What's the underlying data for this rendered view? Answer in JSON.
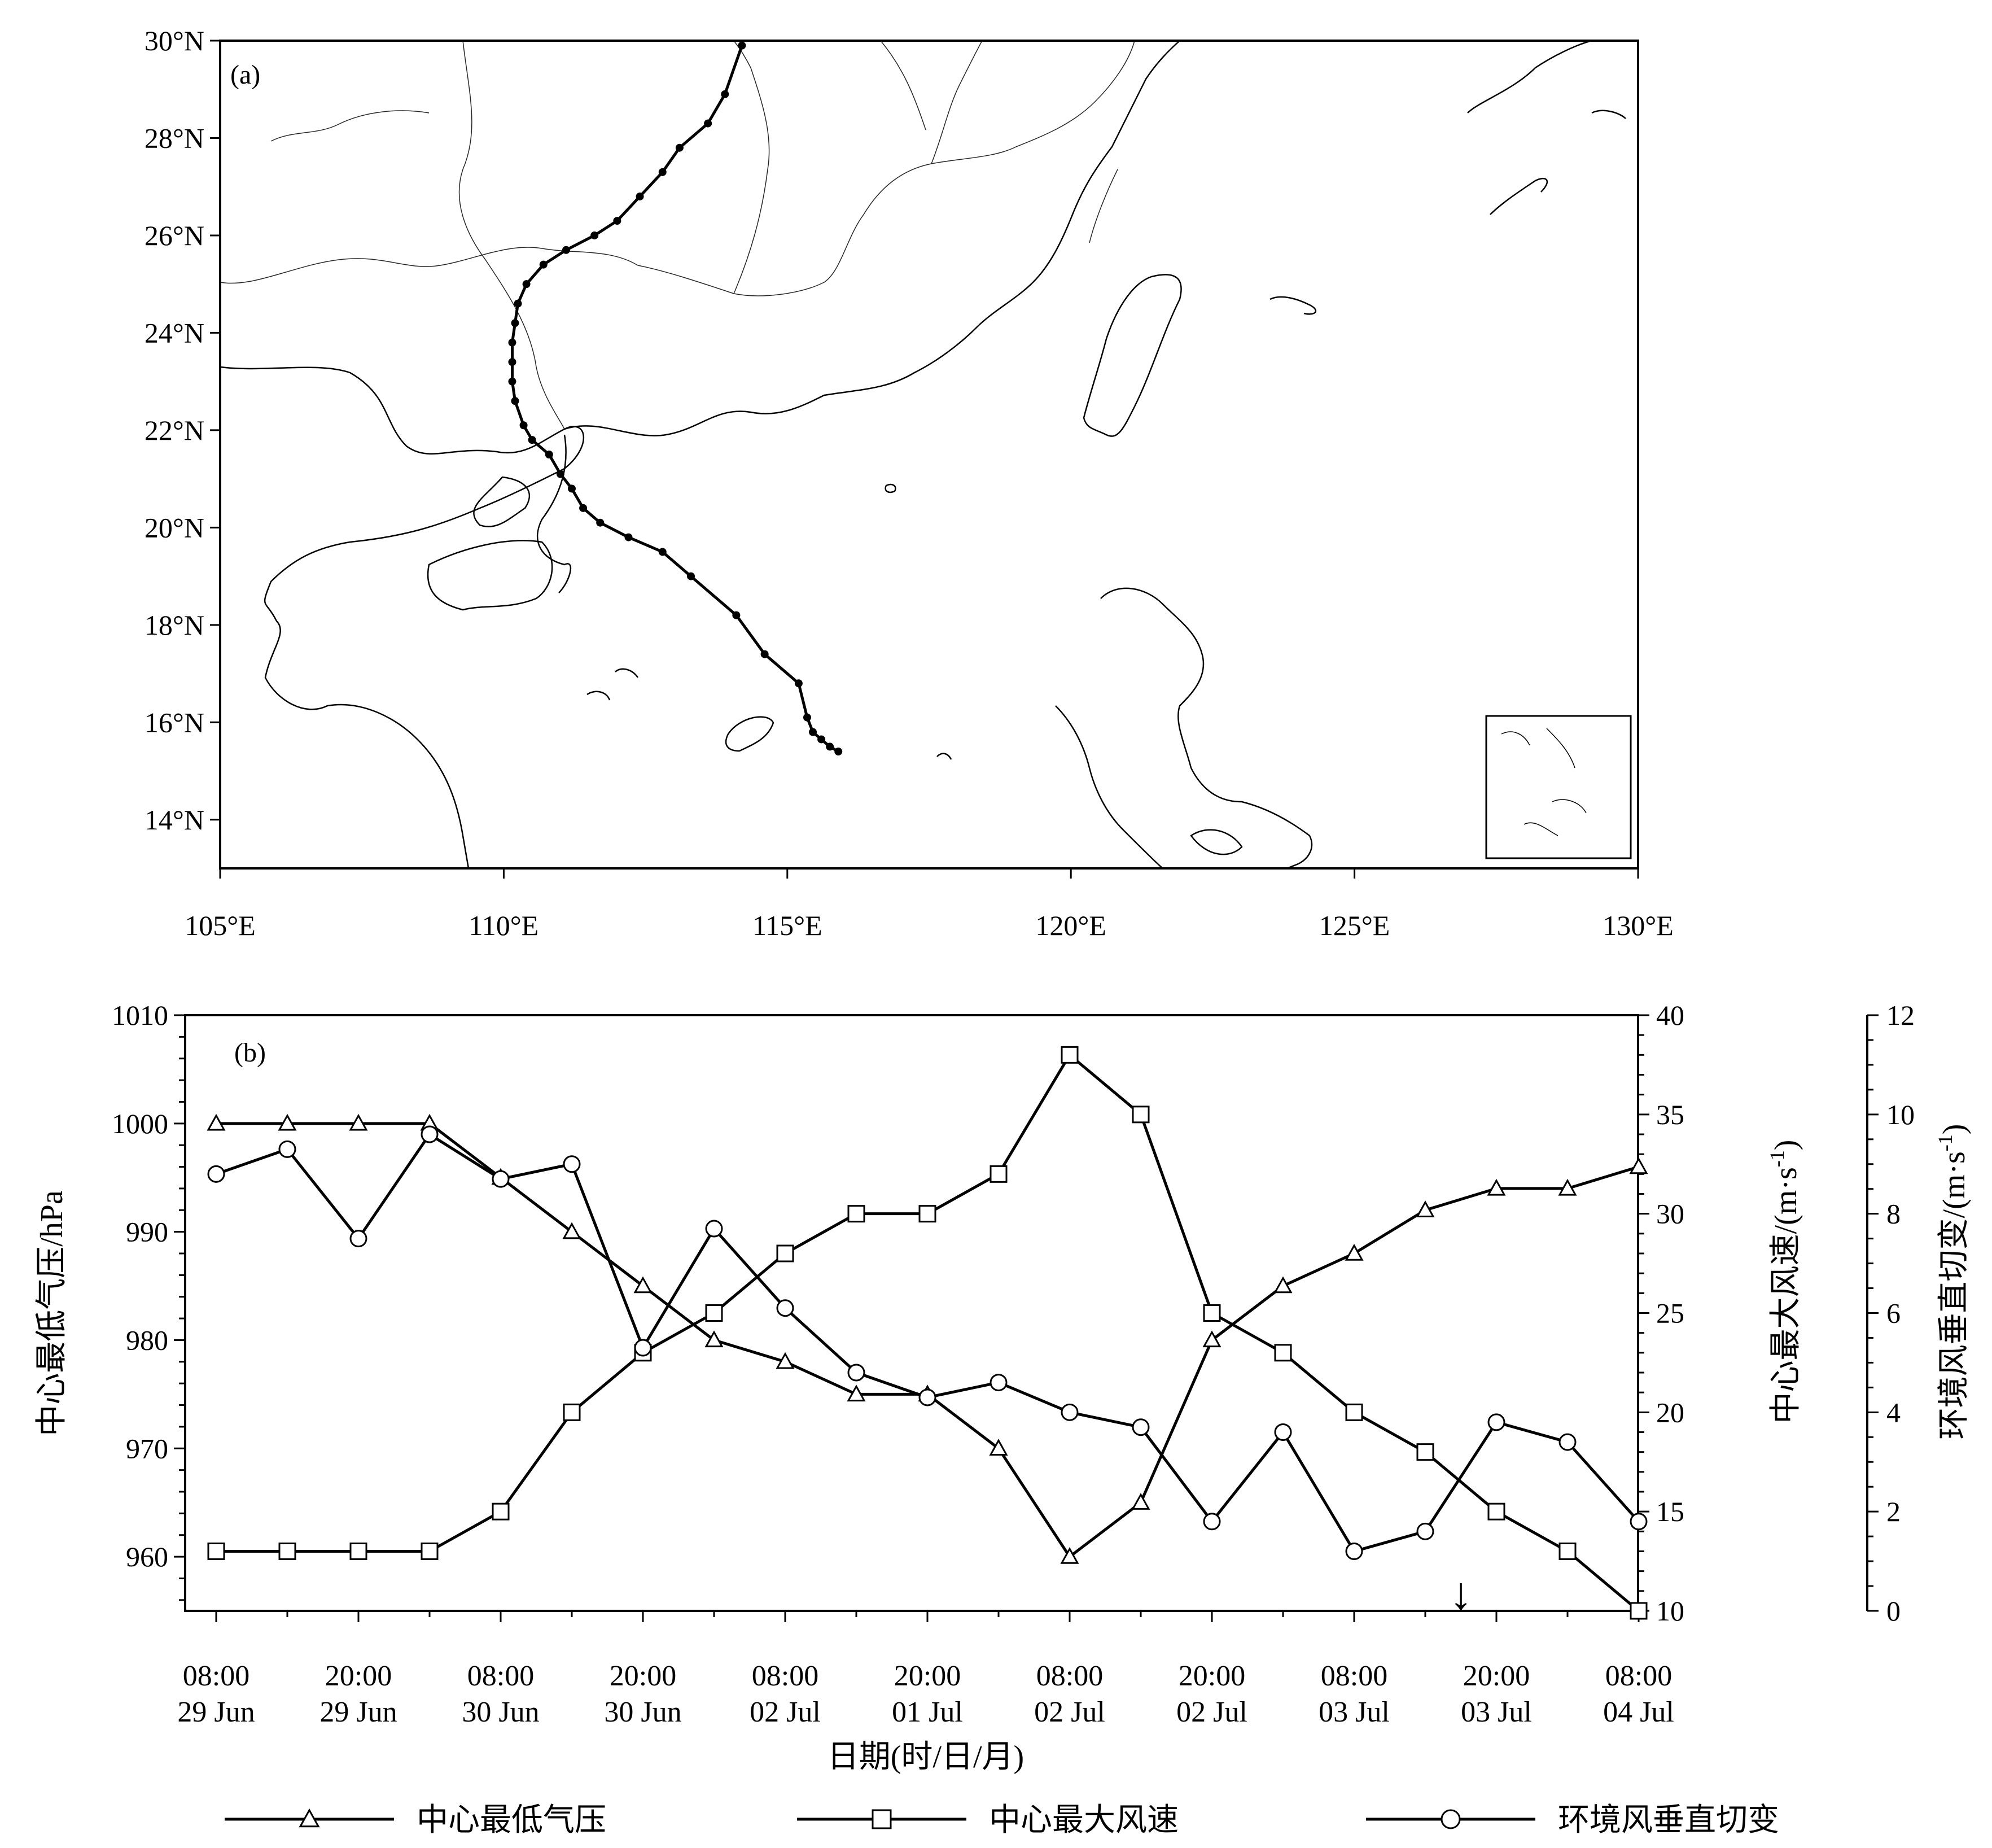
{
  "figure_a": {
    "panel_label": "(a)",
    "lat_ticks": [
      "14°N",
      "16°N",
      "18°N",
      "20°N",
      "22°N",
      "24°N",
      "26°N",
      "28°N",
      "30°N"
    ],
    "lon_ticks": [
      "105°E",
      "110°E",
      "115°E",
      "120°E",
      "125°E",
      "130°E"
    ]
  },
  "figure_b": {
    "panel_label": "(b)",
    "y_left_label": "中心最低气压/hPa",
    "y_right1_label": "中心最大风速/(m·s",
    "y_right2_label": "环境风垂直切变/(m·s",
    "unit_superscript": "-1",
    "unit_close": ")",
    "x_label": "日期(时/日/月)",
    "x_tick_times": [
      "08:00",
      "20:00",
      "08:00",
      "20:00",
      "08:00",
      "20:00",
      "08:00",
      "20:00",
      "08:00",
      "20:00",
      "08:00"
    ],
    "x_tick_dates": [
      "29 Jun",
      "29 Jun",
      "30 Jun",
      "30 Jun",
      "02 Jul",
      "01 Jul",
      "02 Jul",
      "02 Jul",
      "03 Jul",
      "03 Jul",
      "04 Jul"
    ],
    "y_left_ticks": [
      "960",
      "970",
      "980",
      "990",
      "1000",
      "1010"
    ],
    "y_right1_ticks": [
      "10",
      "15",
      "20",
      "25",
      "30",
      "35",
      "40"
    ],
    "y_right2_ticks": [
      "0",
      "2",
      "4",
      "6",
      "8",
      "10",
      "12"
    ],
    "arrow_symbol": "↓",
    "legend": [
      {
        "label": "中心最低气压",
        "marker": "triangle"
      },
      {
        "label": "中心最大风速",
        "marker": "square"
      },
      {
        "label": "环境风垂直切变",
        "marker": "circle"
      }
    ]
  },
  "chart_data": [
    {
      "type": "map",
      "title": "",
      "lon_range": [
        105,
        130
      ],
      "lat_range": [
        13,
        30
      ],
      "track": [
        [
          115.9,
          15.4
        ],
        [
          115.75,
          15.5
        ],
        [
          115.6,
          15.65
        ],
        [
          115.45,
          15.8
        ],
        [
          115.35,
          16.1
        ],
        [
          115.2,
          16.8
        ],
        [
          114.6,
          17.4
        ],
        [
          114.1,
          18.2
        ],
        [
          113.3,
          19.0
        ],
        [
          112.8,
          19.5
        ],
        [
          112.2,
          19.8
        ],
        [
          111.7,
          20.1
        ],
        [
          111.4,
          20.4
        ],
        [
          111.2,
          20.8
        ],
        [
          111.0,
          21.1
        ],
        [
          110.8,
          21.5
        ],
        [
          110.5,
          21.8
        ],
        [
          110.35,
          22.1
        ],
        [
          110.2,
          22.6
        ],
        [
          110.15,
          23.0
        ],
        [
          110.15,
          23.4
        ],
        [
          110.15,
          23.8
        ],
        [
          110.2,
          24.2
        ],
        [
          110.25,
          24.6
        ],
        [
          110.4,
          25.0
        ],
        [
          110.7,
          25.4
        ],
        [
          111.1,
          25.7
        ],
        [
          111.6,
          26.0
        ],
        [
          112.0,
          26.3
        ],
        [
          112.4,
          26.8
        ],
        [
          112.8,
          27.3
        ],
        [
          113.1,
          27.8
        ],
        [
          113.6,
          28.3
        ],
        [
          113.9,
          28.9
        ],
        [
          114.2,
          29.9
        ]
      ]
    },
    {
      "type": "line",
      "title": "",
      "xlabel": "日期(时/日/月)",
      "categories": [
        "08:00 29 Jun",
        "",
        "20:00 29 Jun",
        "",
        "08:00 30 Jun",
        "",
        "20:00 30 Jun",
        "",
        "08:00 02 Jul",
        "",
        "20:00 01 Jul",
        "",
        "08:00 02 Jul",
        "",
        "20:00 02 Jul",
        "",
        "08:00 03 Jul",
        "",
        "20:00 03 Jul",
        "",
        "08:00 04 Jul"
      ],
      "series": [
        {
          "name": "中心最低气压",
          "axis": "left",
          "marker": "triangle",
          "values": [
            1000,
            1000,
            1000,
            1000,
            995,
            990,
            985,
            980,
            978,
            975,
            975,
            970,
            960,
            965,
            980,
            985,
            988,
            992,
            994,
            994,
            996
          ]
        },
        {
          "name": "中心最大风速",
          "axis": "right1",
          "marker": "square",
          "values": [
            13,
            13,
            13,
            13,
            15,
            20,
            23,
            25,
            28,
            30,
            30,
            32,
            38,
            35,
            25,
            23,
            20,
            18,
            15,
            13,
            10
          ]
        },
        {
          "name": "环境风垂直切变",
          "axis": "right2",
          "marker": "circle",
          "values": [
            8.8,
            9.3,
            7.5,
            9.6,
            8.7,
            9.0,
            5.3,
            7.7,
            6.1,
            4.8,
            4.3,
            4.6,
            4.0,
            3.7,
            1.8,
            3.6,
            1.2,
            1.6,
            3.8,
            3.4,
            1.8
          ]
        }
      ],
      "y_left": {
        "label": "中心最低气压/hPa",
        "ylim": [
          955,
          1010
        ]
      },
      "y_right1": {
        "label": "中心最大风速/(m·s-1)",
        "ylim": [
          10,
          40
        ]
      },
      "y_right2": {
        "label": "环境风垂直切变/(m·s-1)",
        "ylim": [
          0,
          12
        ]
      },
      "annotation_arrow_index": 17.5
    }
  ]
}
